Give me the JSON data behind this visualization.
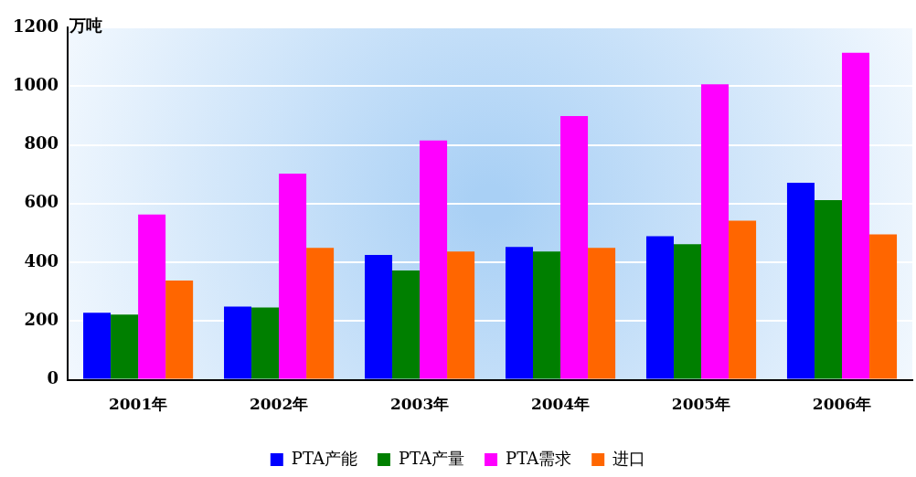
{
  "chart_data": {
    "type": "bar",
    "ylabel": "万吨",
    "categories": [
      "2001年",
      "2002年",
      "2003年",
      "2004年",
      "2005年",
      "2006年"
    ],
    "series": [
      {
        "name": "PTA产能",
        "color": "#0000ff",
        "values": [
          228,
          249,
          425,
          452,
          489,
          671
        ]
      },
      {
        "name": "PTA产量",
        "color": "#007f00",
        "values": [
          222,
          246,
          372,
          437,
          462,
          612
        ]
      },
      {
        "name": "PTA需求",
        "color": "#ff00ff",
        "values": [
          563,
          702,
          815,
          898,
          1006,
          1114
        ]
      },
      {
        "name": "进口",
        "color": "#ff6600",
        "values": [
          338,
          449,
          437,
          449,
          542,
          495
        ]
      }
    ],
    "ylim": [
      0,
      1200
    ],
    "yticks": [
      0,
      200,
      400,
      600,
      800,
      1000,
      1200
    ],
    "grid": "y",
    "legend": "bottom"
  }
}
